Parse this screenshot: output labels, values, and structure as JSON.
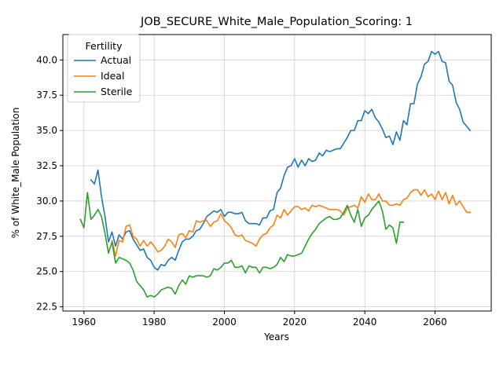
{
  "chart_data": {
    "type": "line",
    "title": "JOB_SECURE_White_Male_Population_Scoring: 1",
    "xlabel": "Years",
    "ylabel": "% of White_Male Population",
    "xlim": [
      1954,
      2076
    ],
    "ylim": [
      22.2,
      41.8
    ],
    "xticks": [
      1960,
      1980,
      2000,
      2020,
      2040,
      2060
    ],
    "yticks": [
      22.5,
      25.0,
      27.5,
      30.0,
      32.5,
      35.0,
      37.5,
      40.0
    ],
    "ytick_labels": [
      "22.5",
      "25.0",
      "27.5",
      "30.0",
      "32.5",
      "35.0",
      "37.5",
      "40.0"
    ],
    "grid": true,
    "legend": {
      "title": "Fertility",
      "position": "top-left"
    },
    "series": [
      {
        "name": "Actual",
        "color": "#1f77b4",
        "x": [
          1962,
          1963,
          1964,
          1965,
          1966,
          1967,
          1968,
          1969,
          1970,
          1971,
          1972,
          1973,
          1974,
          1975,
          1976,
          1977,
          1978,
          1979,
          1980,
          1981,
          1982,
          1983,
          1984,
          1985,
          1986,
          1987,
          1988,
          1989,
          1990,
          1991,
          1992,
          1993,
          1994,
          1995,
          1996,
          1997,
          1998,
          1999,
          2000,
          2001,
          2002,
          2003,
          2004,
          2005,
          2006,
          2007,
          2008,
          2009,
          2010,
          2011,
          2012,
          2013,
          2014,
          2015,
          2016,
          2017,
          2018,
          2019,
          2020,
          2021,
          2022,
          2023,
          2024,
          2025,
          2026,
          2027,
          2028,
          2029,
          2030,
          2031,
          2032,
          2033,
          2034,
          2035,
          2036,
          2037,
          2038,
          2039,
          2040,
          2041,
          2042,
          2043,
          2044,
          2045,
          2046,
          2047,
          2048,
          2049,
          2050,
          2051,
          2052,
          2053,
          2054,
          2055,
          2056,
          2057,
          2058,
          2059,
          2060,
          2061,
          2062,
          2063,
          2064,
          2065,
          2066,
          2067,
          2068,
          2069,
          2070
        ],
        "y": [
          31.5,
          31.2,
          32.2,
          30.3,
          28.9,
          27.1,
          27.8,
          26.8,
          27.6,
          27.3,
          27.8,
          27.9,
          27.3,
          26.9,
          26.5,
          26.6,
          26.0,
          25.8,
          25.3,
          25.1,
          25.5,
          25.4,
          25.8,
          26.0,
          25.8,
          26.5,
          27.1,
          27.3,
          27.3,
          27.5,
          27.9,
          28.0,
          28.4,
          28.9,
          29.1,
          29.3,
          29.2,
          29.4,
          28.9,
          29.2,
          29.2,
          29.1,
          29.1,
          29.2,
          28.6,
          28.4,
          28.4,
          28.4,
          28.3,
          28.8,
          28.8,
          29.3,
          29.4,
          30.6,
          30.9,
          31.8,
          32.4,
          32.5,
          33.0,
          32.4,
          32.9,
          32.5,
          33.0,
          32.8,
          32.9,
          33.4,
          33.2,
          33.6,
          33.5,
          33.6,
          33.7,
          33.7,
          34.1,
          34.5,
          35.0,
          35.0,
          35.7,
          35.7,
          36.4,
          36.2,
          36.5,
          35.9,
          35.6,
          35.1,
          34.5,
          34.6,
          34.0,
          34.9,
          34.3,
          35.7,
          35.4,
          36.9,
          36.9,
          38.3,
          38.8,
          39.7,
          39.9,
          40.6,
          40.4,
          40.6,
          39.9,
          39.8,
          38.5,
          38.2,
          37.0,
          36.5,
          35.6,
          35.3,
          35.0
        ]
      },
      {
        "name": "Ideal",
        "color": "#ff7f0e",
        "x": [
          1968,
          1969,
          1970,
          1971,
          1972,
          1973,
          1974,
          1975,
          1976,
          1977,
          1978,
          1979,
          1980,
          1981,
          1982,
          1983,
          1984,
          1985,
          1986,
          1987,
          1988,
          1989,
          1990,
          1991,
          1992,
          1993,
          1994,
          1995,
          1996,
          1997,
          1998,
          1999,
          2000,
          2001,
          2002,
          2003,
          2004,
          2005,
          2006,
          2007,
          2008,
          2009,
          2010,
          2011,
          2012,
          2013,
          2014,
          2015,
          2016,
          2017,
          2018,
          2019,
          2020,
          2021,
          2022,
          2023,
          2024,
          2025,
          2026,
          2027,
          2028,
          2029,
          2030,
          2031,
          2032,
          2033,
          2034,
          2035,
          2036,
          2037,
          2038,
          2039,
          2040,
          2041,
          2042,
          2043,
          2044,
          2045,
          2046,
          2047,
          2048,
          2049,
          2050,
          2051,
          2052,
          2053,
          2054,
          2055,
          2056,
          2057,
          2058,
          2059,
          2060,
          2061,
          2062,
          2063,
          2064,
          2065,
          2066,
          2067,
          2068,
          2069,
          2070
        ],
        "y": [
          27.2,
          26.1,
          27.2,
          27.1,
          28.2,
          28.3,
          27.5,
          27.3,
          26.8,
          27.2,
          26.8,
          27.1,
          26.8,
          26.4,
          26.5,
          26.8,
          27.3,
          27.1,
          26.7,
          27.6,
          27.7,
          27.4,
          27.9,
          27.8,
          28.6,
          28.5,
          28.6,
          28.6,
          28.2,
          28.5,
          28.6,
          29.1,
          28.6,
          28.4,
          28.1,
          27.6,
          27.5,
          27.6,
          27.2,
          27.1,
          27.0,
          26.8,
          27.3,
          27.6,
          27.7,
          28.1,
          28.3,
          29.0,
          28.8,
          29.4,
          29.0,
          29.3,
          29.6,
          29.6,
          29.4,
          29.5,
          29.3,
          29.7,
          29.6,
          29.7,
          29.6,
          29.5,
          29.4,
          29.4,
          29.4,
          29.3,
          29.0,
          29.5,
          29.6,
          29.7,
          29.5,
          30.3,
          29.9,
          30.5,
          30.1,
          30.1,
          30.5,
          30.0,
          30.0,
          29.7,
          29.7,
          29.8,
          29.7,
          30.1,
          30.2,
          30.6,
          30.8,
          30.8,
          30.4,
          30.8,
          30.3,
          30.5,
          30.1,
          30.7,
          30.1,
          30.6,
          29.8,
          30.4,
          29.7,
          30.0,
          29.6,
          29.2,
          29.2
        ]
      },
      {
        "name": "Sterile",
        "color": "#2ca02c",
        "x": [
          1959,
          1960,
          1961,
          1962,
          1963,
          1964,
          1965,
          1966,
          1967,
          1968,
          1969,
          1970,
          1971,
          1972,
          1973,
          1974,
          1975,
          1976,
          1977,
          1978,
          1979,
          1980,
          1981,
          1982,
          1983,
          1984,
          1985,
          1986,
          1987,
          1988,
          1989,
          1990,
          1991,
          1992,
          1993,
          1994,
          1995,
          1996,
          1997,
          1998,
          1999,
          2000,
          2001,
          2002,
          2003,
          2004,
          2005,
          2006,
          2007,
          2008,
          2009,
          2010,
          2011,
          2012,
          2013,
          2014,
          2015,
          2016,
          2017,
          2018,
          2019,
          2020,
          2021,
          2022,
          2023,
          2024,
          2025,
          2026,
          2027,
          2028,
          2029,
          2030,
          2031,
          2032,
          2033,
          2034,
          2035,
          2036,
          2037,
          2038,
          2039,
          2040,
          2041,
          2042,
          2043,
          2044,
          2045,
          2046,
          2047,
          2048,
          2049,
          2050,
          2051
        ],
        "y": [
          28.7,
          28.1,
          30.6,
          28.7,
          29.0,
          29.4,
          28.9,
          27.7,
          26.3,
          27.1,
          25.6,
          26.0,
          25.9,
          25.8,
          25.6,
          25.1,
          24.3,
          24.0,
          23.7,
          23.2,
          23.3,
          23.2,
          23.4,
          23.7,
          23.8,
          23.9,
          23.8,
          23.4,
          24.0,
          24.4,
          24.1,
          24.7,
          24.6,
          24.7,
          24.7,
          24.7,
          24.6,
          24.7,
          25.2,
          25.1,
          25.3,
          25.6,
          25.6,
          25.8,
          25.3,
          25.3,
          25.4,
          24.9,
          25.4,
          25.3,
          25.3,
          24.9,
          25.3,
          25.3,
          25.2,
          25.3,
          25.5,
          26.0,
          25.7,
          26.2,
          26.1,
          26.1,
          26.2,
          26.3,
          26.8,
          27.3,
          27.7,
          28.0,
          28.4,
          28.6,
          28.8,
          28.9,
          28.7,
          28.7,
          28.8,
          29.2,
          29.7,
          29.0,
          28.5,
          29.4,
          28.2,
          28.8,
          29.0,
          29.4,
          29.7,
          30.0,
          29.3,
          28.0,
          28.3,
          28.1,
          27.0,
          28.5,
          28.5
        ]
      }
    ]
  }
}
